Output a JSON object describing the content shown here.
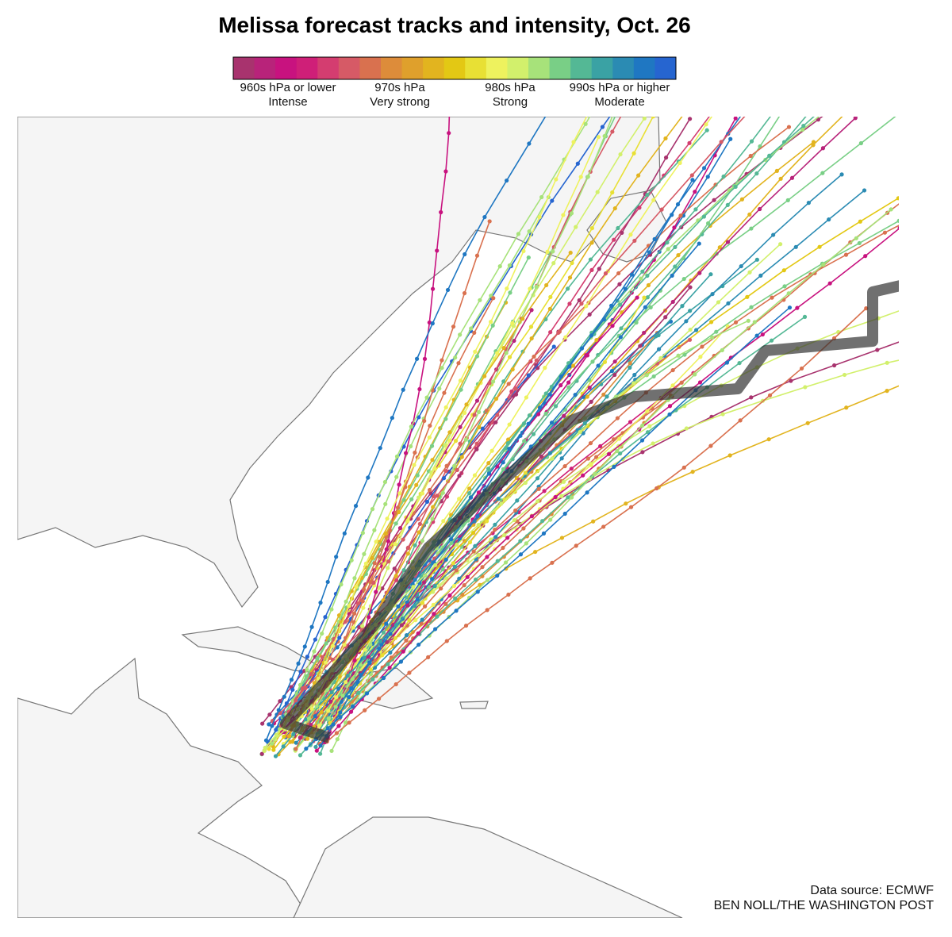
{
  "title": "Melissa forecast tracks and intensity, Oct. 26",
  "legend": {
    "colors": [
      "#a8336e",
      "#b8237a",
      "#c8127f",
      "#cf1f78",
      "#d43d70",
      "#d65a66",
      "#d9714f",
      "#dd8c3a",
      "#dfa02c",
      "#e2b41f",
      "#e3c814",
      "#e8e034",
      "#eef25e",
      "#d2f06c",
      "#a7e27a",
      "#79cf86",
      "#54b895",
      "#3aa2a4",
      "#2b8bb3",
      "#1f77c2",
      "#2665d0"
    ],
    "labels": [
      {
        "pressure": "960s hPa or lower",
        "intensity": "Intense"
      },
      {
        "pressure": "970s hPa",
        "intensity": "Very strong"
      },
      {
        "pressure": "980s hPa",
        "intensity": "Strong"
      },
      {
        "pressure": "990s hPa or higher",
        "intensity": "Moderate"
      }
    ]
  },
  "source": "Data source: ECMWF",
  "credit": "BEN NOLL/THE WASHINGTON POST"
}
